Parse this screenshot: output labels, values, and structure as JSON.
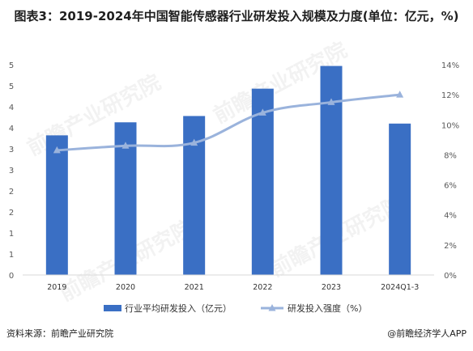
{
  "title": "图表3：2019-2024年中国智能传感器行业研发投入规模及力度(单位：亿元，%)",
  "watermark": "前瞻产业研究院",
  "source": "资料来源：前瞻产业研究院",
  "brand": "@前瞻经济学人APP",
  "colors": {
    "bar": "#3a6fc4",
    "line": "#9ab3dc",
    "grid": "#d9d9d9",
    "axis": "#595959"
  },
  "chart_data": {
    "type": "bar+line",
    "categories": [
      "2019",
      "2020",
      "2021",
      "2022",
      "2023",
      "2024Q1-3"
    ],
    "series": [
      {
        "name": "行业平均研发投入（亿元）",
        "type": "bar",
        "axis": "left",
        "values": [
          3.32,
          3.63,
          3.78,
          4.43,
          4.97,
          3.6
        ]
      },
      {
        "name": "研发投入强度（%）",
        "type": "line",
        "axis": "right",
        "values": [
          8.3,
          8.6,
          8.8,
          10.8,
          11.5,
          12.0
        ]
      }
    ],
    "left_axis": {
      "ticks": [
        "0",
        "1",
        "2",
        "3",
        "4",
        "5"
      ]
    },
    "right_axis": {
      "ticks": [
        "0%",
        "2%",
        "4%",
        "6%",
        "8%",
        "10%",
        "12%",
        "14%"
      ]
    },
    "left_tick_values": [
      0,
      0.5,
      1,
      1.5,
      2,
      2.5,
      3,
      3.5,
      4,
      4.5,
      5
    ],
    "left_tick_labels": [
      "0",
      "1",
      "1",
      "2",
      "2",
      "3",
      "3",
      "4",
      "4",
      "5",
      "5"
    ],
    "right_tick_values": [
      0,
      2,
      4,
      6,
      8,
      10,
      12,
      14
    ],
    "ylim_left": [
      0,
      5
    ],
    "ylim_right": [
      0,
      14
    ],
    "grid": false,
    "legend": "bottom"
  }
}
